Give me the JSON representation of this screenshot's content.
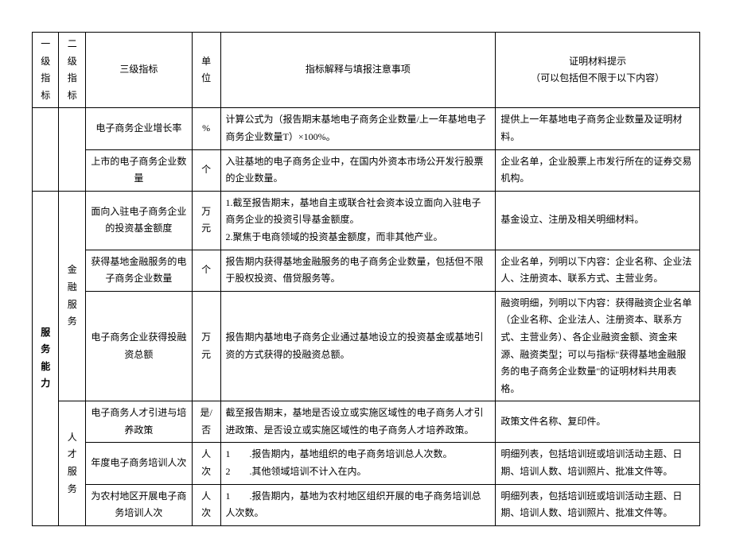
{
  "header": {
    "col1": "一级指标",
    "col2": "二级指标",
    "col3": "三级指标",
    "col4": "单位",
    "col5": "指标解释与填报注意事项",
    "col6_line1": "证明材料提示",
    "col6_line2": "（可以包括但不限于以下内容）"
  },
  "rows": [
    {
      "l3": "电子商务企业增长率",
      "unit": "%",
      "exp": "计算公式为（报告期末基地电子商务企业数量/上一年基地电子商务企业数量T）×100%。",
      "proof": "提供上一年基地电子商务企业数量及证明材料。"
    },
    {
      "l3": "上市的电子商务企业数量",
      "unit": "个",
      "exp": "入驻基地的电子商务企业中，在国内外资本市场公开发行股票的企业数量。",
      "proof": "企业名单，企业股票上市发行所在的证券交易机构。"
    },
    {
      "l3": "面向入驻电子商务企业的投资基金额度",
      "unit": "万元",
      "exp": "1.截至报告期末，基地自主或联合社会资本设立面向入驻电子商务企业的投资引导基金额度。\n2.聚焦于电商领域的投资基金额度，而非其他产业。",
      "proof": "基金设立、注册及相关明细材料。"
    },
    {
      "l3": "获得基地金融服务的电子商务企业数量",
      "unit": "个",
      "exp": "报告期内获得基地金融服务的电子商务企业数量，包括但不限于股权投资、借贷服务等。",
      "proof": "企业名单，列明以下内容：企业名称、企业法人、注册资本、联系方式、主营业务。"
    },
    {
      "l3": "电子商务企业获得投融资总额",
      "unit": "万元",
      "exp": "报告期内基地电子商务企业通过基地设立的投资基金或基地引资的方式获得的投融资总额。",
      "proof": "融资明细，列明以下内容：获得融资企业名单（企业名称、企业法人、注册资本、联系方式、主营业务）、各企业融资金额、资金来源、融资类型；可以与指标\"获得基地金融服务的电子商务企业数量\"的证明材料共用表格。"
    },
    {
      "l3": "电子商务人才引进与培养政策",
      "unit": "是/否",
      "exp": "截至报告期末，基地是否设立或实施区域性的电子商务人才引进政策、是否设立或实施区域性的电子商务人才培养政策。",
      "proof": "政策文件名称、复印件。"
    },
    {
      "l3": "年度电子商务培训人次",
      "unit": "人次",
      "exp": "1　　.报告期内，基地组织的电子商务培训总人次数。\n2　　.其他领域培训不计入在内。",
      "proof": "明细列表，包括培训班或培训活动主题、日期、培训人数、培训照片、批准文件等。"
    },
    {
      "l3": "为农村地区开展电子商务培训人次",
      "unit": "人次",
      "exp": "1　　.报告期内，基地为农村地区组织开展的电子商务培训总人次数。",
      "proof": "明细列表，包括培训班或培训活动主题、日期、培训人数、培训照片、批准文件等。"
    }
  ],
  "groups": {
    "l1": "服务能力",
    "l2a": "金融服务",
    "l2b": "人才服务"
  }
}
